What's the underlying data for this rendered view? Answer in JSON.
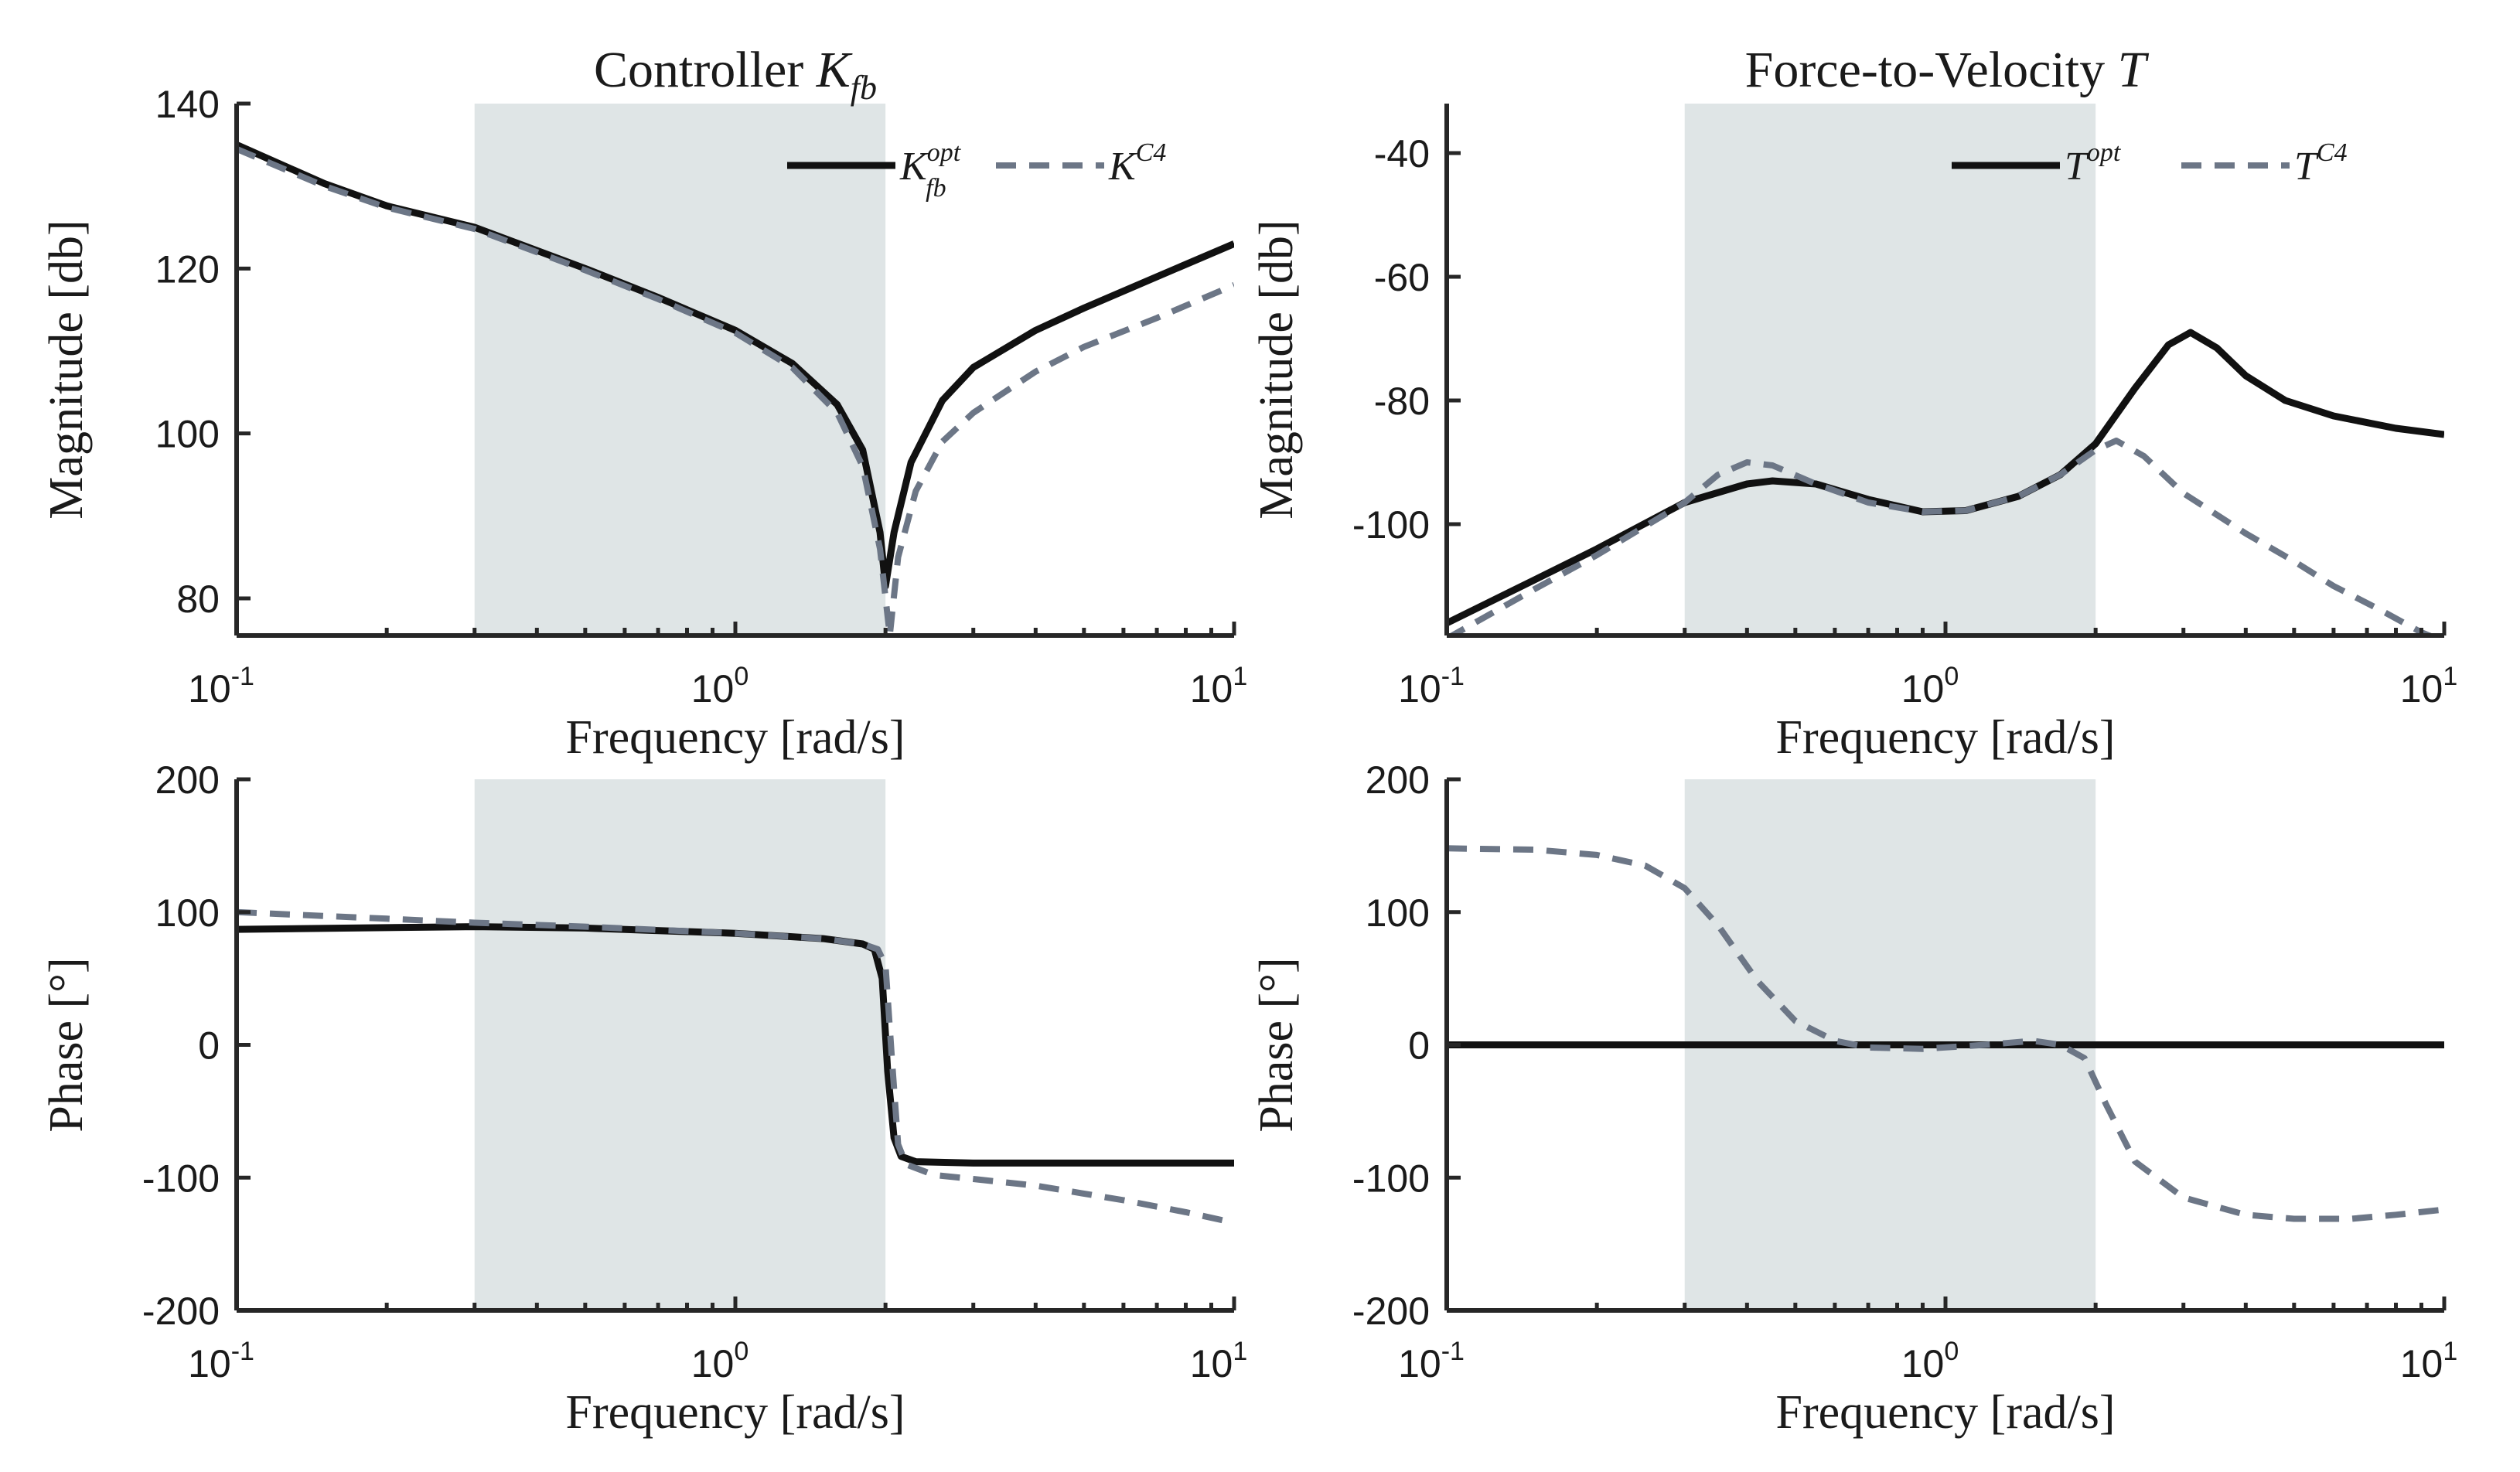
{
  "figure": {
    "x_axis_label": "Frequency [rad/s]",
    "x_tick_labels": [
      {
        "base": "10",
        "exp": "-1"
      },
      {
        "base": "10",
        "exp": "0"
      },
      {
        "base": "10",
        "exp": "1"
      }
    ],
    "shade_color": "#dfe5e6",
    "colors": {
      "solid": "#111111",
      "dashed": "#6c7686"
    }
  },
  "chart_data": [
    {
      "id": "k-mag",
      "type": "line",
      "title": "Controller",
      "title_math": {
        "main": "K",
        "sub": "fb"
      },
      "xlabel": "Frequency [rad/s]",
      "ylabel": "Magnitude [db]",
      "xscale": "log",
      "xlim": [
        0.1,
        10
      ],
      "ylim": [
        75.5,
        140
      ],
      "yticks": [
        80,
        100,
        120,
        140
      ],
      "shaded_band": [
        0.3,
        2.0
      ],
      "legend": {
        "position": "top-right",
        "entries": [
          {
            "main": "K",
            "sup": "opt",
            "sub": "fb",
            "style": "solid"
          },
          {
            "main": "K",
            "sup": "C4",
            "sub": "",
            "style": "dashed"
          }
        ]
      },
      "series": [
        {
          "name": "K_fb^opt",
          "style": "solid",
          "points": [
            [
              0.1,
              135.0
            ],
            [
              0.15,
              130.3
            ],
            [
              0.2,
              127.6
            ],
            [
              0.3,
              125.0
            ],
            [
              0.5,
              120.0
            ],
            [
              0.7,
              116.5
            ],
            [
              1.0,
              112.5
            ],
            [
              1.3,
              108.5
            ],
            [
              1.6,
              103.5
            ],
            [
              1.8,
              98.0
            ],
            [
              1.95,
              88.0
            ],
            [
              2.0,
              81.5
            ],
            [
              2.08,
              88.0
            ],
            [
              2.25,
              96.5
            ],
            [
              2.6,
              104.0
            ],
            [
              3.0,
              108.0
            ],
            [
              4.0,
              112.5
            ],
            [
              5.0,
              115.2
            ],
            [
              7.0,
              119.0
            ],
            [
              10.0,
              123.0
            ]
          ]
        },
        {
          "name": "K^C4",
          "style": "dashed",
          "points": [
            [
              0.1,
              134.5
            ],
            [
              0.15,
              130.0
            ],
            [
              0.2,
              127.4
            ],
            [
              0.3,
              124.8
            ],
            [
              0.5,
              119.8
            ],
            [
              0.7,
              116.3
            ],
            [
              1.0,
              112.2
            ],
            [
              1.3,
              108.0
            ],
            [
              1.6,
              102.5
            ],
            [
              1.8,
              96.0
            ],
            [
              1.95,
              86.0
            ],
            [
              2.04,
              75.5
            ],
            [
              2.12,
              85.0
            ],
            [
              2.3,
              93.0
            ],
            [
              2.6,
              99.0
            ],
            [
              3.0,
              102.5
            ],
            [
              4.0,
              107.5
            ],
            [
              5.0,
              110.5
            ],
            [
              7.0,
              114.0
            ],
            [
              10.0,
              118.0
            ]
          ]
        }
      ]
    },
    {
      "id": "t-mag",
      "type": "line",
      "title": "Force-to-Velocity",
      "title_math": {
        "main": "T",
        "sub": ""
      },
      "xlabel": "Frequency [rad/s]",
      "ylabel": "Magnitude [db]",
      "xscale": "log",
      "xlim": [
        0.1,
        10
      ],
      "ylim": [
        -118,
        -32
      ],
      "yticks": [
        -100,
        -80,
        -60,
        -40
      ],
      "shaded_band": [
        0.3,
        2.0
      ],
      "legend": {
        "position": "top-right",
        "entries": [
          {
            "main": "T",
            "sup": "opt",
            "sub": "",
            "style": "solid"
          },
          {
            "main": "T",
            "sup": "C4",
            "sub": "",
            "style": "dashed"
          }
        ]
      },
      "series": [
        {
          "name": "T^opt",
          "style": "solid",
          "points": [
            [
              0.1,
              -116.0
            ],
            [
              0.15,
              -109.0
            ],
            [
              0.2,
              -104.0
            ],
            [
              0.3,
              -96.5
            ],
            [
              0.4,
              -93.5
            ],
            [
              0.45,
              -93.0
            ],
            [
              0.55,
              -93.5
            ],
            [
              0.7,
              -96.0
            ],
            [
              0.9,
              -98.0
            ],
            [
              1.1,
              -97.8
            ],
            [
              1.4,
              -95.5
            ],
            [
              1.7,
              -92.0
            ],
            [
              2.0,
              -87.0
            ],
            [
              2.4,
              -78.0
            ],
            [
              2.8,
              -71.0
            ],
            [
              3.1,
              -69.0
            ],
            [
              3.5,
              -71.5
            ],
            [
              4.0,
              -76.0
            ],
            [
              4.8,
              -80.0
            ],
            [
              6.0,
              -82.5
            ],
            [
              8.0,
              -84.5
            ],
            [
              10.0,
              -85.5
            ]
          ]
        },
        {
          "name": "T^C4",
          "style": "dashed",
          "points": [
            [
              0.1,
              -118.5
            ],
            [
              0.15,
              -110.5
            ],
            [
              0.2,
              -105.0
            ],
            [
              0.3,
              -96.5
            ],
            [
              0.35,
              -92.0
            ],
            [
              0.4,
              -90.0
            ],
            [
              0.45,
              -90.5
            ],
            [
              0.55,
              -93.5
            ],
            [
              0.7,
              -96.5
            ],
            [
              0.9,
              -98.0
            ],
            [
              1.1,
              -97.8
            ],
            [
              1.4,
              -95.5
            ],
            [
              1.7,
              -92.0
            ],
            [
              2.0,
              -88.0
            ],
            [
              2.2,
              -86.5
            ],
            [
              2.5,
              -89.0
            ],
            [
              3.0,
              -95.0
            ],
            [
              4.0,
              -101.5
            ],
            [
              5.0,
              -106.0
            ],
            [
              6.0,
              -110.0
            ],
            [
              7.5,
              -114.0
            ],
            [
              9.0,
              -117.5
            ],
            [
              10.0,
              -119.0
            ]
          ]
        }
      ]
    },
    {
      "id": "k-phase",
      "type": "line",
      "title": "",
      "xlabel": "Frequency [rad/s]",
      "ylabel": "Phase [°]",
      "xscale": "log",
      "xlim": [
        0.1,
        10
      ],
      "ylim": [
        -200,
        200
      ],
      "yticks": [
        -200,
        -100,
        0,
        100,
        200
      ],
      "shaded_band": [
        0.3,
        2.0
      ],
      "series": [
        {
          "name": "K_fb^opt",
          "style": "solid",
          "points": [
            [
              0.1,
              87.0
            ],
            [
              0.3,
              89.0
            ],
            [
              0.5,
              88.0
            ],
            [
              1.0,
              84.0
            ],
            [
              1.5,
              80.0
            ],
            [
              1.8,
              76.0
            ],
            [
              1.9,
              72.0
            ],
            [
              1.97,
              50.0
            ],
            [
              2.02,
              -20.0
            ],
            [
              2.08,
              -70.0
            ],
            [
              2.15,
              -84.0
            ],
            [
              2.3,
              -88.0
            ],
            [
              3.0,
              -89.0
            ],
            [
              5.0,
              -89.0
            ],
            [
              10.0,
              -89.0
            ]
          ]
        },
        {
          "name": "K^C4",
          "style": "dashed",
          "points": [
            [
              0.1,
              100.0
            ],
            [
              0.2,
              95.0
            ],
            [
              0.3,
              92.0
            ],
            [
              0.5,
              89.0
            ],
            [
              1.0,
              84.0
            ],
            [
              1.5,
              80.0
            ],
            [
              1.8,
              76.0
            ],
            [
              1.93,
              72.0
            ],
            [
              2.0,
              60.0
            ],
            [
              2.06,
              -10.0
            ],
            [
              2.12,
              -75.0
            ],
            [
              2.2,
              -90.0
            ],
            [
              2.5,
              -98.0
            ],
            [
              3.0,
              -101.0
            ],
            [
              4.0,
              -106.0
            ],
            [
              6.0,
              -117.0
            ],
            [
              8.0,
              -126.0
            ],
            [
              10.0,
              -134.0
            ]
          ]
        }
      ]
    },
    {
      "id": "t-phase",
      "type": "line",
      "title": "",
      "xlabel": "Frequency [rad/s]",
      "ylabel": "Phase [°]",
      "xscale": "log",
      "xlim": [
        0.1,
        10
      ],
      "ylim": [
        -200,
        200
      ],
      "yticks": [
        -200,
        -100,
        0,
        100,
        200
      ],
      "shaded_band": [
        0.3,
        2.0
      ],
      "series": [
        {
          "name": "T^opt",
          "style": "solid",
          "points": [
            [
              0.1,
              0
            ],
            [
              10.0,
              0
            ]
          ]
        },
        {
          "name": "T^C4",
          "style": "dashed",
          "points": [
            [
              0.1,
              148.0
            ],
            [
              0.15,
              147.0
            ],
            [
              0.2,
              143.0
            ],
            [
              0.25,
              135.0
            ],
            [
              0.3,
              118.0
            ],
            [
              0.35,
              90.0
            ],
            [
              0.42,
              48.0
            ],
            [
              0.5,
              18.0
            ],
            [
              0.6,
              3.0
            ],
            [
              0.7,
              -2.0
            ],
            [
              0.9,
              -3.0
            ],
            [
              1.2,
              0.0
            ],
            [
              1.5,
              3.0
            ],
            [
              1.7,
              0.0
            ],
            [
              1.9,
              -10.0
            ],
            [
              2.1,
              -45.0
            ],
            [
              2.4,
              -88.0
            ],
            [
              3.0,
              -115.0
            ],
            [
              4.0,
              -128.0
            ],
            [
              5.0,
              -131.0
            ],
            [
              6.5,
              -131.0
            ],
            [
              8.0,
              -128.0
            ],
            [
              10.0,
              -124.0
            ]
          ]
        }
      ]
    }
  ]
}
